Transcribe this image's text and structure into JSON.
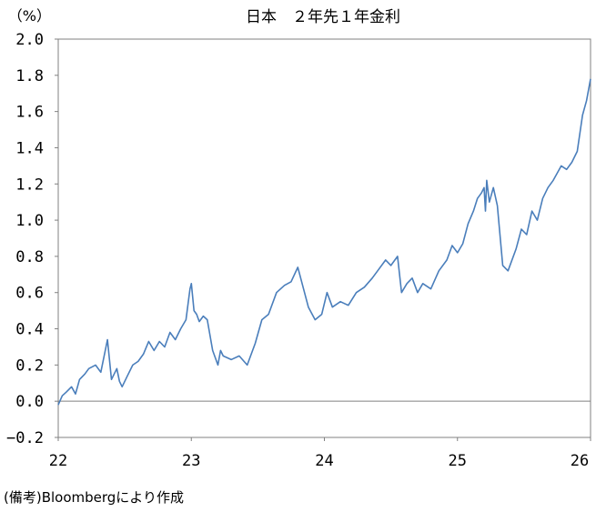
{
  "chart_data": {
    "type": "line",
    "title": "日本　２年先１年金利",
    "unit_label": "（%）",
    "ylim": [
      -0.2,
      2.0
    ],
    "y_ticks": [
      "2.0",
      "1.8",
      "1.6",
      "1.4",
      "1.2",
      "1.0",
      "0.8",
      "0.6",
      "0.4",
      "0.2",
      "0.0",
      "−0.2"
    ],
    "y_tick_values": [
      2.0,
      1.8,
      1.6,
      1.4,
      1.2,
      1.0,
      0.8,
      0.6,
      0.4,
      0.2,
      0.0,
      -0.2
    ],
    "xlim": [
      22,
      26
    ],
    "x_ticks": [
      "22",
      "23",
      "24",
      "25",
      "26"
    ],
    "x_tick_values": [
      22,
      23,
      24,
      25,
      26
    ],
    "zero_line": 0.0,
    "grid": false,
    "line_color": "#4a7ebb",
    "series": [
      {
        "x": [
          22.0,
          22.03,
          22.06,
          22.1,
          22.13,
          22.16,
          22.2,
          22.23,
          22.28,
          22.32,
          22.37,
          22.4,
          22.44,
          22.46,
          22.48,
          22.52,
          22.56,
          22.6,
          22.64,
          22.68,
          22.72,
          22.76,
          22.8,
          22.84,
          22.88,
          22.92,
          22.96,
          22.99,
          23.0,
          23.02,
          23.04,
          23.06,
          23.09,
          23.12,
          23.16,
          23.2,
          23.22,
          23.24,
          23.3,
          23.36,
          23.42,
          23.48,
          23.53,
          23.58,
          23.64,
          23.7,
          23.75,
          23.8,
          23.84,
          23.88,
          23.93,
          23.98,
          24.02,
          24.06,
          24.12,
          24.18,
          24.24,
          24.3,
          24.36,
          24.4,
          24.46,
          24.5,
          24.55,
          24.58,
          24.62,
          24.66,
          24.7,
          24.74,
          24.8,
          24.86,
          24.92,
          24.96,
          25.0,
          25.04,
          25.08,
          25.12,
          25.15,
          25.18,
          25.2,
          25.21,
          25.22,
          25.24,
          25.27,
          25.3,
          25.34,
          25.38,
          25.44,
          25.48,
          25.52,
          25.56,
          25.6,
          25.64,
          25.68,
          25.72,
          25.78,
          25.82,
          25.86,
          25.9,
          25.94,
          25.97,
          26.0
        ],
        "y": [
          -0.02,
          0.03,
          0.05,
          0.08,
          0.04,
          0.12,
          0.15,
          0.18,
          0.2,
          0.16,
          0.34,
          0.12,
          0.18,
          0.11,
          0.08,
          0.14,
          0.2,
          0.22,
          0.26,
          0.33,
          0.28,
          0.33,
          0.3,
          0.38,
          0.34,
          0.4,
          0.45,
          0.62,
          0.65,
          0.5,
          0.48,
          0.44,
          0.47,
          0.45,
          0.28,
          0.2,
          0.28,
          0.25,
          0.23,
          0.25,
          0.2,
          0.32,
          0.45,
          0.48,
          0.6,
          0.64,
          0.66,
          0.74,
          0.63,
          0.52,
          0.45,
          0.48,
          0.6,
          0.52,
          0.55,
          0.53,
          0.6,
          0.63,
          0.68,
          0.72,
          0.78,
          0.75,
          0.8,
          0.6,
          0.65,
          0.68,
          0.6,
          0.65,
          0.62,
          0.72,
          0.78,
          0.86,
          0.82,
          0.87,
          0.98,
          1.05,
          1.12,
          1.15,
          1.18,
          1.05,
          1.22,
          1.1,
          1.18,
          1.08,
          0.75,
          0.72,
          0.84,
          0.95,
          0.92,
          1.05,
          1.0,
          1.12,
          1.18,
          1.22,
          1.3,
          1.28,
          1.32,
          1.38,
          1.58,
          1.66,
          1.78
        ]
      }
    ]
  },
  "note": "(備考)Bloombergにより作成"
}
